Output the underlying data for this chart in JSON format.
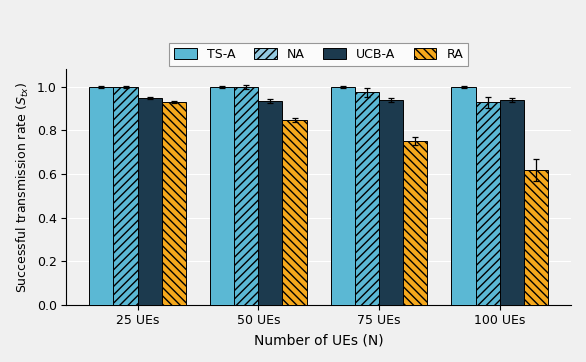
{
  "categories": [
    "25 UEs",
    "50 UEs",
    "75 UEs",
    "100 UEs"
  ],
  "series": {
    "TS-A": [
      1.0,
      1.0,
      1.0,
      1.0
    ],
    "NA": [
      1.0,
      1.0,
      0.975,
      0.93
    ],
    "UCB-A": [
      0.95,
      0.935,
      0.94,
      0.94
    ],
    "RA": [
      0.932,
      0.848,
      0.752,
      0.62
    ]
  },
  "errors": {
    "TS-A": [
      0.003,
      0.003,
      0.003,
      0.005
    ],
    "NA": [
      0.003,
      0.01,
      0.02,
      0.025
    ],
    "UCB-A": [
      0.005,
      0.008,
      0.008,
      0.008
    ],
    "RA": [
      0.005,
      0.008,
      0.02,
      0.05
    ]
  },
  "colors": {
    "TS-A": "#5BB8D4",
    "NA": "#93C9E0",
    "UCB-A": "#1C3A4E",
    "RA": "#F5A81C"
  },
  "hatch": {
    "TS-A": "",
    "NA": "////",
    "UCB-A": "",
    "RA": "\\\\\\\\"
  },
  "xlabel": "Number of UEs (N)",
  "ylabel": "Successful transmission rate ($S_{tx}$)",
  "ylim": [
    0.0,
    1.08
  ],
  "yticks": [
    0.0,
    0.2,
    0.4,
    0.6,
    0.8,
    1.0
  ],
  "bar_width": 0.2,
  "legend_order": [
    "TS-A",
    "NA",
    "UCB-A",
    "RA"
  ],
  "edge_color": "black",
  "edge_linewidth": 0.7,
  "background_color": "#F0F0F0",
  "grid_color": "#FFFFFF",
  "hatch_color_NA": "#5BB8D4",
  "hatch_color_RA": "#F5A81C"
}
